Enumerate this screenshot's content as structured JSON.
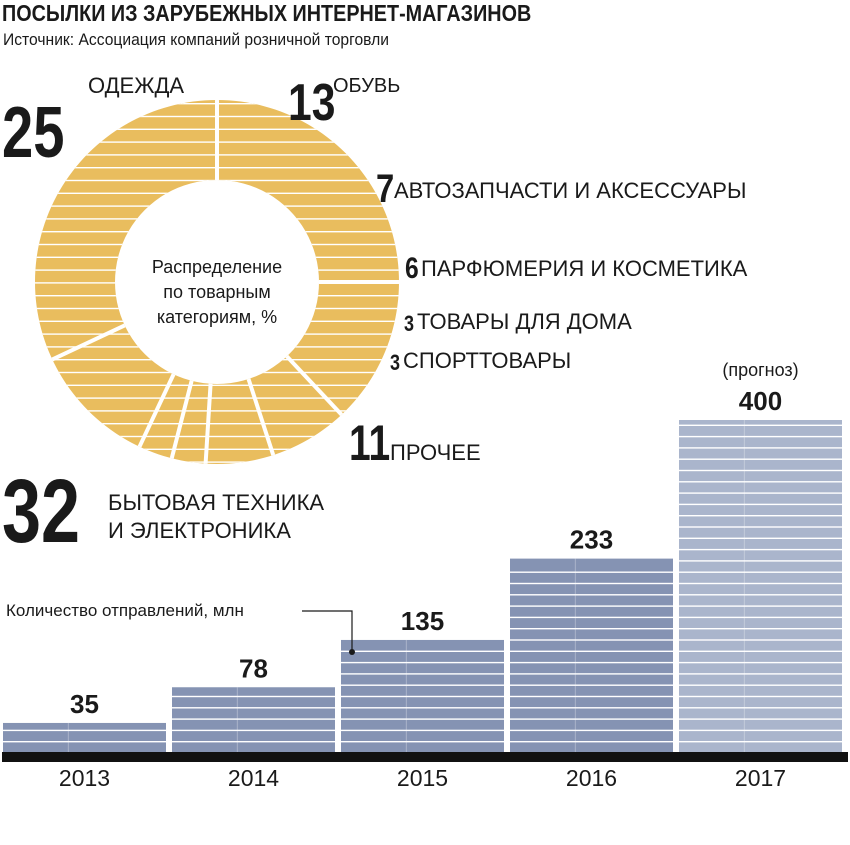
{
  "title": "ПОСЫЛКИ ИЗ ЗАРУБЕЖНЫХ ИНТЕРНЕТ-МАГАЗИНОВ",
  "source": "Источник: Ассоциация компаний розничной торговли",
  "colors": {
    "pie": "#e9bd5e",
    "bar": "#8593b3",
    "bar_forecast": "#aab5cc",
    "baseline": "#111111",
    "stripe": "#ffffff"
  },
  "chart_data": [
    {
      "type": "pie",
      "title": "Распределение по товарным категориям, %",
      "center_lines": [
        "Распределение",
        "по товарным",
        "категориям, %"
      ],
      "slices": [
        {
          "label": "ОДЕЖДА",
          "value": 25
        },
        {
          "label": "ОБУВЬ",
          "value": 13
        },
        {
          "label": "АВТОЗАПЧАСТИ И АКСЕССУАРЫ",
          "value": 7
        },
        {
          "label": "ПАРФЮМЕРИЯ И КОСМЕТИКА",
          "value": 6
        },
        {
          "label": "ТОВАРЫ ДЛЯ ДОМА",
          "value": 3
        },
        {
          "label": "СПОРТТОВАРЫ",
          "value": 3
        },
        {
          "label": "ПРОЧЕЕ",
          "value": 11
        },
        {
          "label": "БЫТОВАЯ ТЕХНИКА И ЭЛЕКТРОНИКА",
          "label_lines": [
            "БЫТОВАЯ ТЕХНИКА",
            "И ЭЛЕКТРОНИКА"
          ],
          "value": 32
        }
      ]
    },
    {
      "type": "bar",
      "ylabel": "Количество отправлений, млн",
      "categories": [
        "2013",
        "2014",
        "2015",
        "2016",
        "2017"
      ],
      "values": [
        35,
        78,
        135,
        233,
        400
      ],
      "annotations": [
        {
          "category": "2017",
          "text": "(прогноз)"
        }
      ]
    }
  ]
}
